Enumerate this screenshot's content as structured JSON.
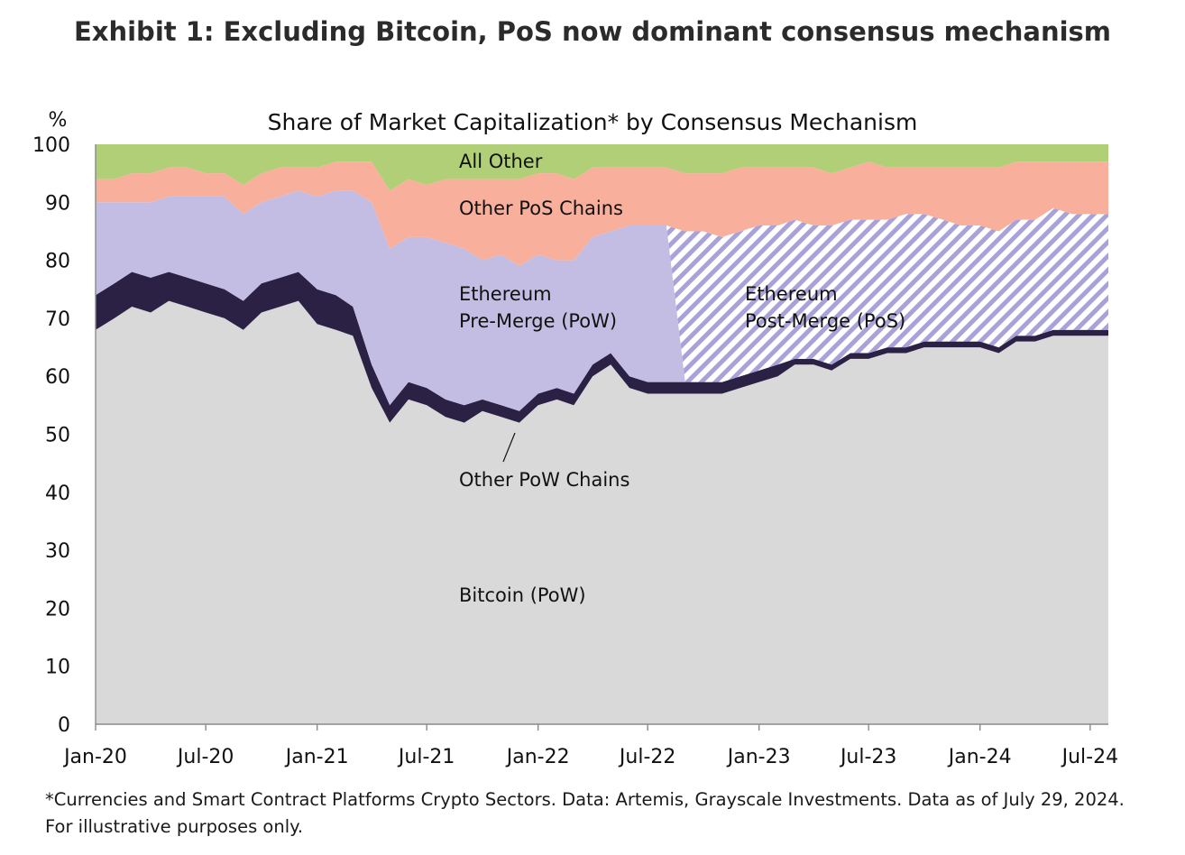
{
  "exhibit_title": "Exhibit 1: Excluding Bitcoin, PoS now dominant consensus mechanism",
  "footnote": "*Currencies and Smart Contract Platforms Crypto Sectors. Data: Artemis, Grayscale Investments. Data as of July 29, 2024. For illustrative purposes only.",
  "colors": {
    "bitcoin": "#d9d9d9",
    "other_pow": "#2a2145",
    "ethereum_pow": "#c3bde3",
    "ethereum_pos_stripe": "#a9a2d8",
    "other_pos": "#f8b09c",
    "all_other": "#b1cf77"
  },
  "chart_data": {
    "type": "area",
    "stacked": true,
    "title": "Share of Market Capitalization* by Consensus Mechanism",
    "ylabel": "%",
    "ylim": [
      0,
      100
    ],
    "yticks": [
      0,
      10,
      20,
      30,
      40,
      50,
      60,
      70,
      80,
      90,
      100
    ],
    "x_tick_labels": [
      "Jan-20",
      "Jul-20",
      "Jan-21",
      "Jul-21",
      "Jan-22",
      "Jul-22",
      "Jan-23",
      "Jul-23",
      "Jan-24",
      "Jul-24"
    ],
    "x": [
      "2020-01",
      "2020-02",
      "2020-03",
      "2020-04",
      "2020-05",
      "2020-06",
      "2020-07",
      "2020-08",
      "2020-09",
      "2020-10",
      "2020-11",
      "2020-12",
      "2021-01",
      "2021-02",
      "2021-03",
      "2021-04",
      "2021-05",
      "2021-06",
      "2021-07",
      "2021-08",
      "2021-09",
      "2021-10",
      "2021-11",
      "2021-12",
      "2022-01",
      "2022-02",
      "2022-03",
      "2022-04",
      "2022-05",
      "2022-06",
      "2022-07",
      "2022-08",
      "2022-09",
      "2022-10",
      "2022-11",
      "2022-12",
      "2023-01",
      "2023-02",
      "2023-03",
      "2023-04",
      "2023-05",
      "2023-06",
      "2023-07",
      "2023-08",
      "2023-09",
      "2023-10",
      "2023-11",
      "2023-12",
      "2024-01",
      "2024-02",
      "2024-03",
      "2024-04",
      "2024-05",
      "2024-06",
      "2024-07"
    ],
    "merge_date": "2022-09",
    "series": [
      {
        "name": "Bitcoin (PoW)",
        "values": [
          68,
          70,
          72,
          71,
          73,
          72,
          71,
          70,
          68,
          71,
          72,
          73,
          69,
          68,
          67,
          58,
          52,
          56,
          55,
          53,
          52,
          54,
          53,
          52,
          55,
          56,
          55,
          60,
          62,
          58,
          57,
          57,
          57,
          57,
          57,
          58,
          59,
          60,
          62,
          62,
          61,
          63,
          63,
          64,
          64,
          65,
          65,
          65,
          65,
          64,
          66,
          66,
          67,
          67,
          67
        ]
      },
      {
        "name": "Other PoW Chains",
        "values": [
          6,
          6,
          6,
          6,
          5,
          5,
          5,
          5,
          5,
          5,
          5,
          5,
          6,
          6,
          5,
          4,
          3,
          3,
          3,
          3,
          3,
          2,
          2,
          2,
          2,
          2,
          2,
          2,
          2,
          2,
          2,
          2,
          2,
          2,
          2,
          2,
          2,
          2,
          1,
          1,
          1,
          1,
          1,
          1,
          1,
          1,
          1,
          1,
          1,
          1,
          1,
          1,
          1,
          1,
          1
        ]
      },
      {
        "name": "Ethereum Pre-Merge (PoW)",
        "values": [
          16,
          14,
          12,
          13,
          13,
          14,
          15,
          16,
          15,
          14,
          14,
          14,
          16,
          18,
          20,
          28,
          27,
          25,
          26,
          27,
          27,
          24,
          26,
          25,
          24,
          22,
          23,
          22,
          21,
          26,
          27,
          27,
          0,
          0,
          0,
          0,
          0,
          0,
          0,
          0,
          0,
          0,
          0,
          0,
          0,
          0,
          0,
          0,
          0,
          0,
          0,
          0,
          0,
          0,
          0
        ]
      },
      {
        "name": "Ethereum Post-Merge (PoS)",
        "values": [
          0,
          0,
          0,
          0,
          0,
          0,
          0,
          0,
          0,
          0,
          0,
          0,
          0,
          0,
          0,
          0,
          0,
          0,
          0,
          0,
          0,
          0,
          0,
          0,
          0,
          0,
          0,
          0,
          0,
          0,
          0,
          0,
          26,
          26,
          25,
          25,
          25,
          24,
          24,
          23,
          24,
          23,
          23,
          22,
          23,
          22,
          21,
          20,
          20,
          20,
          20,
          20,
          21,
          20,
          20
        ]
      },
      {
        "name": "Other PoS Chains",
        "values": [
          4,
          4,
          5,
          5,
          5,
          5,
          4,
          4,
          5,
          5,
          5,
          4,
          5,
          5,
          5,
          7,
          10,
          10,
          9,
          11,
          12,
          14,
          13,
          15,
          14,
          15,
          14,
          12,
          11,
          10,
          10,
          10,
          10,
          10,
          11,
          11,
          10,
          10,
          9,
          10,
          9,
          9,
          10,
          9,
          8,
          8,
          9,
          10,
          10,
          11,
          10,
          10,
          8,
          9,
          9
        ]
      },
      {
        "name": "All Other",
        "values": [
          6,
          6,
          5,
          5,
          4,
          4,
          5,
          5,
          7,
          5,
          4,
          4,
          4,
          3,
          3,
          3,
          8,
          6,
          7,
          6,
          6,
          6,
          6,
          6,
          5,
          5,
          6,
          4,
          4,
          4,
          4,
          4,
          5,
          5,
          5,
          4,
          4,
          4,
          4,
          4,
          5,
          4,
          3,
          4,
          4,
          4,
          4,
          4,
          4,
          4,
          3,
          3,
          3,
          3,
          3
        ]
      }
    ]
  }
}
